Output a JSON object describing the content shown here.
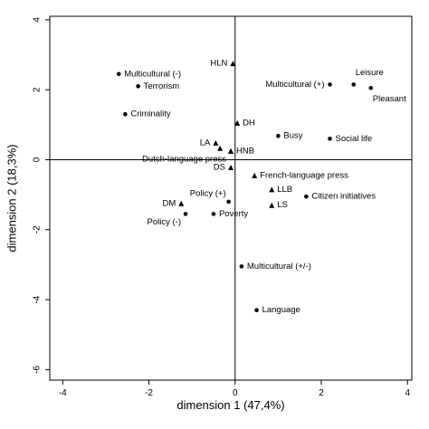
{
  "chart_data": {
    "type": "scatter",
    "title": "",
    "xlabel": "dimension 1 (47,4%)",
    "ylabel": "dimension 2 (18,3%)",
    "xlim": [
      -4.3,
      4.1
    ],
    "ylim": [
      -6.3,
      4.1
    ],
    "xticks": [
      -4,
      -2,
      0,
      2,
      4
    ],
    "yticks": [
      4,
      2,
      0,
      -2,
      -4,
      -6
    ],
    "reference_lines": {
      "x": 0,
      "y": 0
    },
    "grid": false,
    "legend": "none",
    "series": [
      {
        "marker": "triangle",
        "points": [
          {
            "label": "HLN",
            "x": -0.05,
            "y": 2.75,
            "anchor": "left"
          },
          {
            "label": "DH",
            "x": 0.05,
            "y": 1.05,
            "anchor": "right"
          },
          {
            "label": "LA",
            "x": -0.45,
            "y": 0.48,
            "anchor": "left"
          },
          {
            "label": "",
            "x": -0.35,
            "y": 0.33,
            "anchor": "none"
          },
          {
            "label": "HNB",
            "x": -0.1,
            "y": 0.25,
            "anchor": "right"
          },
          {
            "label": "Dutch-language press",
            "x": -0.1,
            "y": 0.25,
            "anchor": "left-below"
          },
          {
            "label": "DS",
            "x": -0.1,
            "y": -0.22,
            "anchor": "left"
          },
          {
            "label": "French-language press",
            "x": 0.45,
            "y": -0.45,
            "anchor": "right"
          },
          {
            "label": "DM",
            "x": -1.25,
            "y": -1.25,
            "anchor": "left"
          },
          {
            "label": "LLB",
            "x": 0.85,
            "y": -0.85,
            "anchor": "right"
          },
          {
            "label": "LS",
            "x": 0.85,
            "y": -1.3,
            "anchor": "right"
          }
        ]
      },
      {
        "marker": "dot",
        "points": [
          {
            "label": "Multicultural (-)",
            "x": -2.7,
            "y": 2.45,
            "anchor": "right"
          },
          {
            "label": "Terrorism",
            "x": -2.25,
            "y": 2.1,
            "anchor": "right"
          },
          {
            "label": "Criminality",
            "x": -2.55,
            "y": 1.3,
            "anchor": "right"
          },
          {
            "label": "Multicultural (+)",
            "x": 2.2,
            "y": 2.15,
            "anchor": "left"
          },
          {
            "label": "Leisure",
            "x": 2.75,
            "y": 2.15,
            "anchor": "right-above"
          },
          {
            "label": "Pleasant",
            "x": 3.15,
            "y": 2.05,
            "anchor": "right-below"
          },
          {
            "label": "Busy",
            "x": 1.0,
            "y": 0.68,
            "anchor": "right"
          },
          {
            "label": "Social life",
            "x": 2.2,
            "y": 0.6,
            "anchor": "right"
          },
          {
            "label": "Citizen initiatives",
            "x": 1.65,
            "y": -1.05,
            "anchor": "right"
          },
          {
            "label": "Policy (+)",
            "x": -0.15,
            "y": -1.2,
            "anchor": "left-above"
          },
          {
            "label": "Policy (-)",
            "x": -1.15,
            "y": -1.55,
            "anchor": "left-below"
          },
          {
            "label": "Poverty",
            "x": -0.5,
            "y": -1.55,
            "anchor": "right"
          },
          {
            "label": "Multicultural (+/-)",
            "x": 0.15,
            "y": -3.05,
            "anchor": "right"
          },
          {
            "label": "Language",
            "x": 0.5,
            "y": -4.3,
            "anchor": "right"
          }
        ]
      }
    ]
  }
}
